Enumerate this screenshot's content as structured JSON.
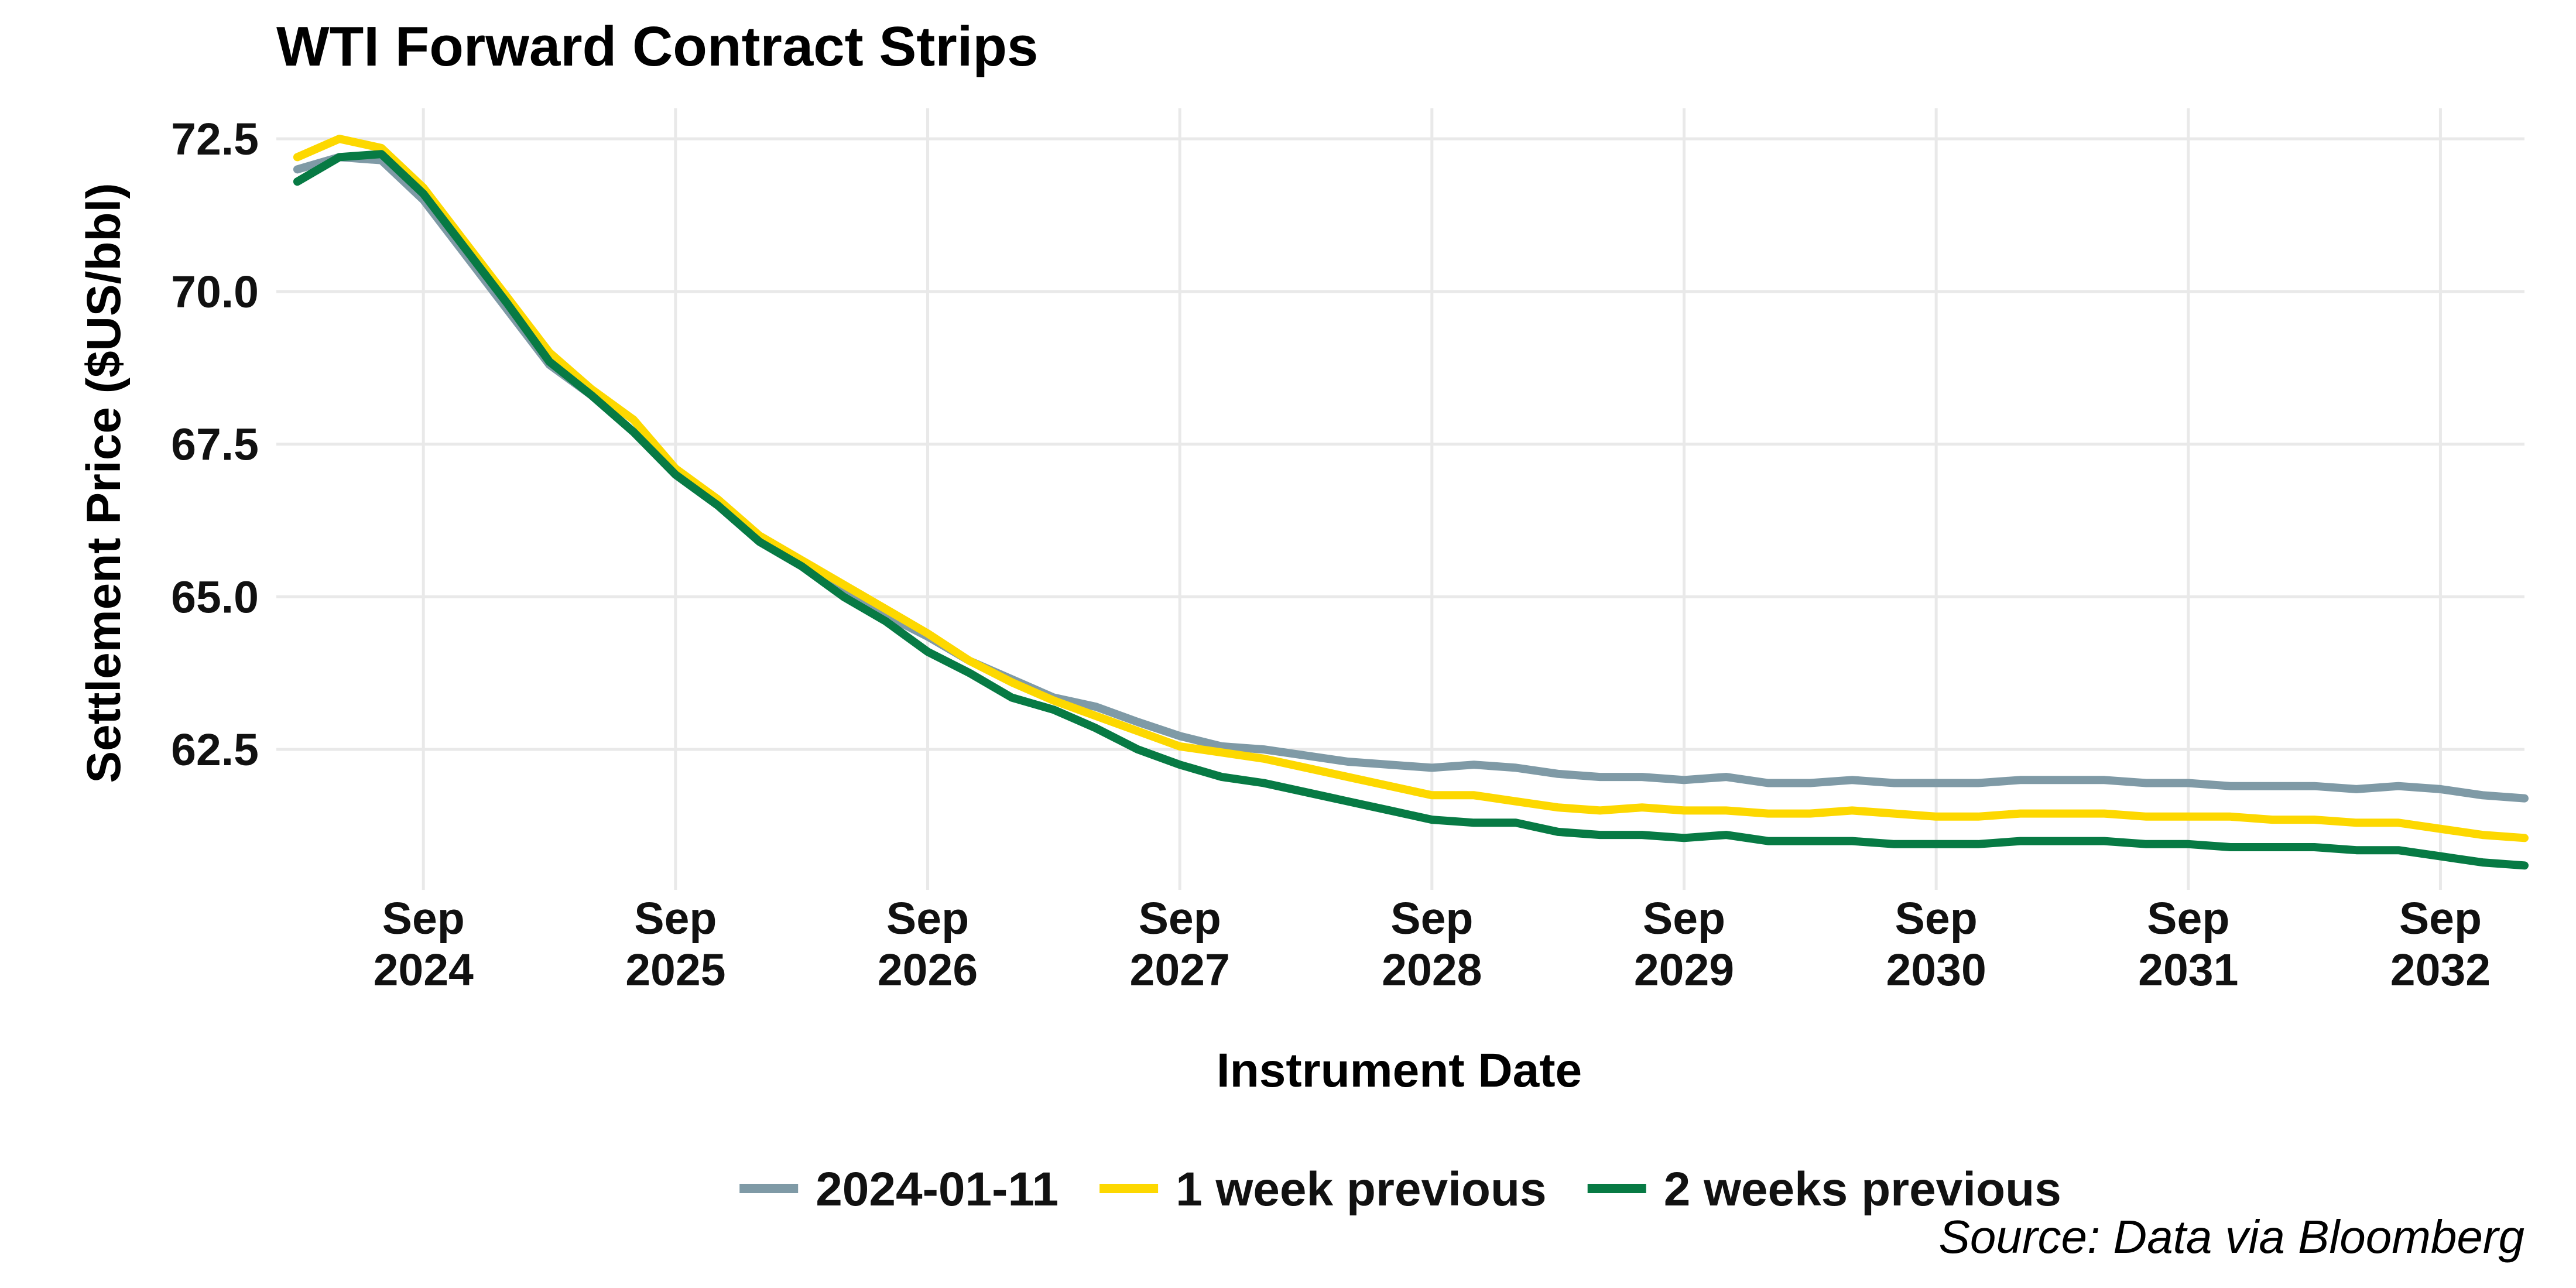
{
  "chart_data": {
    "type": "line",
    "title": "WTI Forward Contract Strips",
    "xlabel": "Instrument Date",
    "ylabel": "Settlement Price ($US/bbl)",
    "caption": "Source: Data via Bloomberg",
    "legend_position": "bottom",
    "grid": true,
    "xlim": [
      "2024-02",
      "2033-01"
    ],
    "ylim": [
      60.2,
      73.0
    ],
    "y_ticks": [
      62.5,
      65.0,
      67.5,
      70.0,
      72.5
    ],
    "y_tick_labels": [
      "62.5",
      "65.0",
      "67.5",
      "70.0",
      "72.5"
    ],
    "x_ticks": [
      "2024-09",
      "2025-09",
      "2026-09",
      "2027-09",
      "2028-09",
      "2029-09",
      "2030-09",
      "2031-09",
      "2032-09"
    ],
    "x_tick_labels": [
      [
        "Sep",
        "2024"
      ],
      [
        "Sep",
        "2025"
      ],
      [
        "Sep",
        "2026"
      ],
      [
        "Sep",
        "2027"
      ],
      [
        "Sep",
        "2028"
      ],
      [
        "Sep",
        "2029"
      ],
      [
        "Sep",
        "2030"
      ],
      [
        "Sep",
        "2031"
      ],
      [
        "Sep",
        "2032"
      ]
    ],
    "series": [
      {
        "name": "2024-01-11",
        "color": "#7f9aa6",
        "x": [
          "2024-03",
          "2024-05",
          "2024-07",
          "2024-09",
          "2024-11",
          "2025-01",
          "2025-03",
          "2025-05",
          "2025-07",
          "2025-09",
          "2025-11",
          "2026-01",
          "2026-03",
          "2026-05",
          "2026-07",
          "2026-09",
          "2026-11",
          "2027-01",
          "2027-03",
          "2027-05",
          "2027-07",
          "2027-09",
          "2027-11",
          "2028-01",
          "2028-03",
          "2028-05",
          "2028-07",
          "2028-09",
          "2028-11",
          "2029-01",
          "2029-03",
          "2029-05",
          "2029-07",
          "2029-09",
          "2029-11",
          "2030-01",
          "2030-03",
          "2030-05",
          "2030-07",
          "2030-09",
          "2030-11",
          "2031-01",
          "2031-03",
          "2031-05",
          "2031-07",
          "2031-09",
          "2031-11",
          "2032-01",
          "2032-03",
          "2032-05",
          "2032-07",
          "2032-09",
          "2032-11",
          "2033-01"
        ],
        "values": [
          72.0,
          72.2,
          72.15,
          71.5,
          70.6,
          69.7,
          68.8,
          68.3,
          67.7,
          67.0,
          66.5,
          65.9,
          65.5,
          65.1,
          64.7,
          64.35,
          63.95,
          63.65,
          63.35,
          63.2,
          62.95,
          62.72,
          62.55,
          62.5,
          62.4,
          62.3,
          62.25,
          62.2,
          62.25,
          62.2,
          62.1,
          62.05,
          62.05,
          62.0,
          62.05,
          61.95,
          61.95,
          62.0,
          61.95,
          61.95,
          61.95,
          62.0,
          62.0,
          62.0,
          61.95,
          61.95,
          61.9,
          61.9,
          61.9,
          61.85,
          61.9,
          61.85,
          61.75,
          61.7
        ]
      },
      {
        "name": "1 week previous",
        "color": "#fdd800",
        "x": [
          "2024-03",
          "2024-05",
          "2024-07",
          "2024-09",
          "2024-11",
          "2025-01",
          "2025-03",
          "2025-05",
          "2025-07",
          "2025-09",
          "2025-11",
          "2026-01",
          "2026-03",
          "2026-05",
          "2026-07",
          "2026-09",
          "2026-11",
          "2027-01",
          "2027-03",
          "2027-05",
          "2027-07",
          "2027-09",
          "2027-11",
          "2028-01",
          "2028-03",
          "2028-05",
          "2028-07",
          "2028-09",
          "2028-11",
          "2029-01",
          "2029-03",
          "2029-05",
          "2029-07",
          "2029-09",
          "2029-11",
          "2030-01",
          "2030-03",
          "2030-05",
          "2030-07",
          "2030-09",
          "2030-11",
          "2031-01",
          "2031-03",
          "2031-05",
          "2031-07",
          "2031-09",
          "2031-11",
          "2032-01",
          "2032-03",
          "2032-05",
          "2032-07",
          "2032-09",
          "2032-11",
          "2033-01"
        ],
        "values": [
          72.2,
          72.5,
          72.35,
          71.7,
          70.8,
          69.9,
          69.0,
          68.4,
          67.9,
          67.1,
          66.6,
          66.0,
          65.6,
          65.2,
          64.8,
          64.4,
          63.95,
          63.6,
          63.3,
          63.05,
          62.8,
          62.55,
          62.45,
          62.35,
          62.2,
          62.05,
          61.9,
          61.75,
          61.75,
          61.65,
          61.55,
          61.5,
          61.55,
          61.5,
          61.5,
          61.45,
          61.45,
          61.5,
          61.45,
          61.4,
          61.4,
          61.45,
          61.45,
          61.45,
          61.4,
          61.4,
          61.4,
          61.35,
          61.35,
          61.3,
          61.3,
          61.2,
          61.1,
          61.05
        ]
      },
      {
        "name": "2 weeks previous",
        "color": "#077a44",
        "x": [
          "2024-03",
          "2024-05",
          "2024-07",
          "2024-09",
          "2024-11",
          "2025-01",
          "2025-03",
          "2025-05",
          "2025-07",
          "2025-09",
          "2025-11",
          "2026-01",
          "2026-03",
          "2026-05",
          "2026-07",
          "2026-09",
          "2026-11",
          "2027-01",
          "2027-03",
          "2027-05",
          "2027-07",
          "2027-09",
          "2027-11",
          "2028-01",
          "2028-03",
          "2028-05",
          "2028-07",
          "2028-09",
          "2028-11",
          "2029-01",
          "2029-03",
          "2029-05",
          "2029-07",
          "2029-09",
          "2029-11",
          "2030-01",
          "2030-03",
          "2030-05",
          "2030-07",
          "2030-09",
          "2030-11",
          "2031-01",
          "2031-03",
          "2031-05",
          "2031-07",
          "2031-09",
          "2031-11",
          "2032-01",
          "2032-03",
          "2032-05",
          "2032-07",
          "2032-09",
          "2032-11",
          "2033-01"
        ],
        "values": [
          71.8,
          72.2,
          72.25,
          71.6,
          70.7,
          69.8,
          68.85,
          68.3,
          67.7,
          67.0,
          66.5,
          65.9,
          65.5,
          65.0,
          64.6,
          64.1,
          63.75,
          63.35,
          63.15,
          62.85,
          62.5,
          62.25,
          62.05,
          61.95,
          61.8,
          61.65,
          61.5,
          61.35,
          61.3,
          61.3,
          61.15,
          61.1,
          61.1,
          61.05,
          61.1,
          61.0,
          61.0,
          61.0,
          60.95,
          60.95,
          60.95,
          61.0,
          61.0,
          61.0,
          60.95,
          60.95,
          60.9,
          60.9,
          60.9,
          60.85,
          60.85,
          60.75,
          60.65,
          60.6
        ]
      }
    ]
  }
}
